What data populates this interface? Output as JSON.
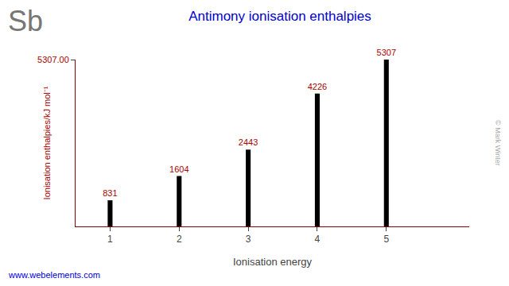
{
  "chart_data": {
    "type": "bar",
    "title": "Antimony ionisation enthalpies",
    "x_label": "Ionisation energy",
    "y_label": "Ionisation enthalpies/kJ mol⁻¹",
    "x": [
      1,
      2,
      3,
      4,
      5
    ],
    "values": [
      831,
      1604,
      2443,
      4226,
      5307
    ],
    "color": "#000000",
    "xlim": [
      0.5,
      6.2
    ],
    "xticks": [
      1,
      2,
      3,
      4,
      5
    ],
    "ylim": [
      0,
      5307
    ],
    "yticks": [
      {
        "value": 5307.0,
        "label": "5307.00"
      }
    ],
    "grid": false,
    "data_labels": true,
    "annotations": [
      "Sb",
      "www.webelements.com",
      "© Mark Winter"
    ]
  }
}
